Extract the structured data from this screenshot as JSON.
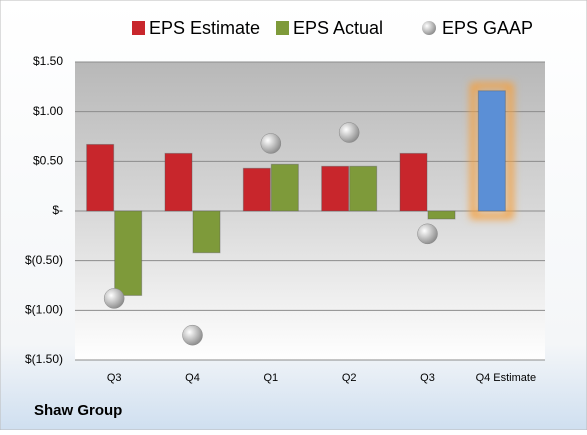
{
  "chart_data": {
    "type": "bar",
    "footer": "Shaw Group",
    "categories": [
      "Q3",
      "Q4",
      "Q1",
      "Q2",
      "Q3",
      "Q4 Estimate"
    ],
    "series": [
      {
        "name": "EPS Estimate",
        "color": "#c8262c",
        "colors": [
          "#c8262c",
          "#c8262c",
          "#c8262c",
          "#c8262c",
          "#c8262c",
          "#5b8fd6"
        ],
        "values": [
          0.67,
          0.58,
          0.43,
          0.45,
          0.58,
          1.21
        ]
      },
      {
        "name": "EPS Actual",
        "color": "#7e9a3a",
        "values": [
          -0.85,
          -0.42,
          0.47,
          0.45,
          -0.08,
          null
        ]
      },
      {
        "name": "EPS GAAP",
        "color": "#a0a0a0",
        "marker": "circle",
        "values": [
          -0.88,
          -1.25,
          0.68,
          0.79,
          -0.23,
          null
        ]
      }
    ],
    "ylim": [
      -1.5,
      1.5
    ],
    "yticks": [
      {
        "value": 1.5,
        "label": "$1.50"
      },
      {
        "value": 1.0,
        "label": "$1.00"
      },
      {
        "value": 0.5,
        "label": "$0.50"
      },
      {
        "value": 0,
        "label": "$-"
      },
      {
        "value": -0.5,
        "label": "$(0.50)"
      },
      {
        "value": -1.0,
        "label": "$(1.00)"
      },
      {
        "value": -1.5,
        "label": "$(1.50)"
      }
    ],
    "grid": true
  }
}
